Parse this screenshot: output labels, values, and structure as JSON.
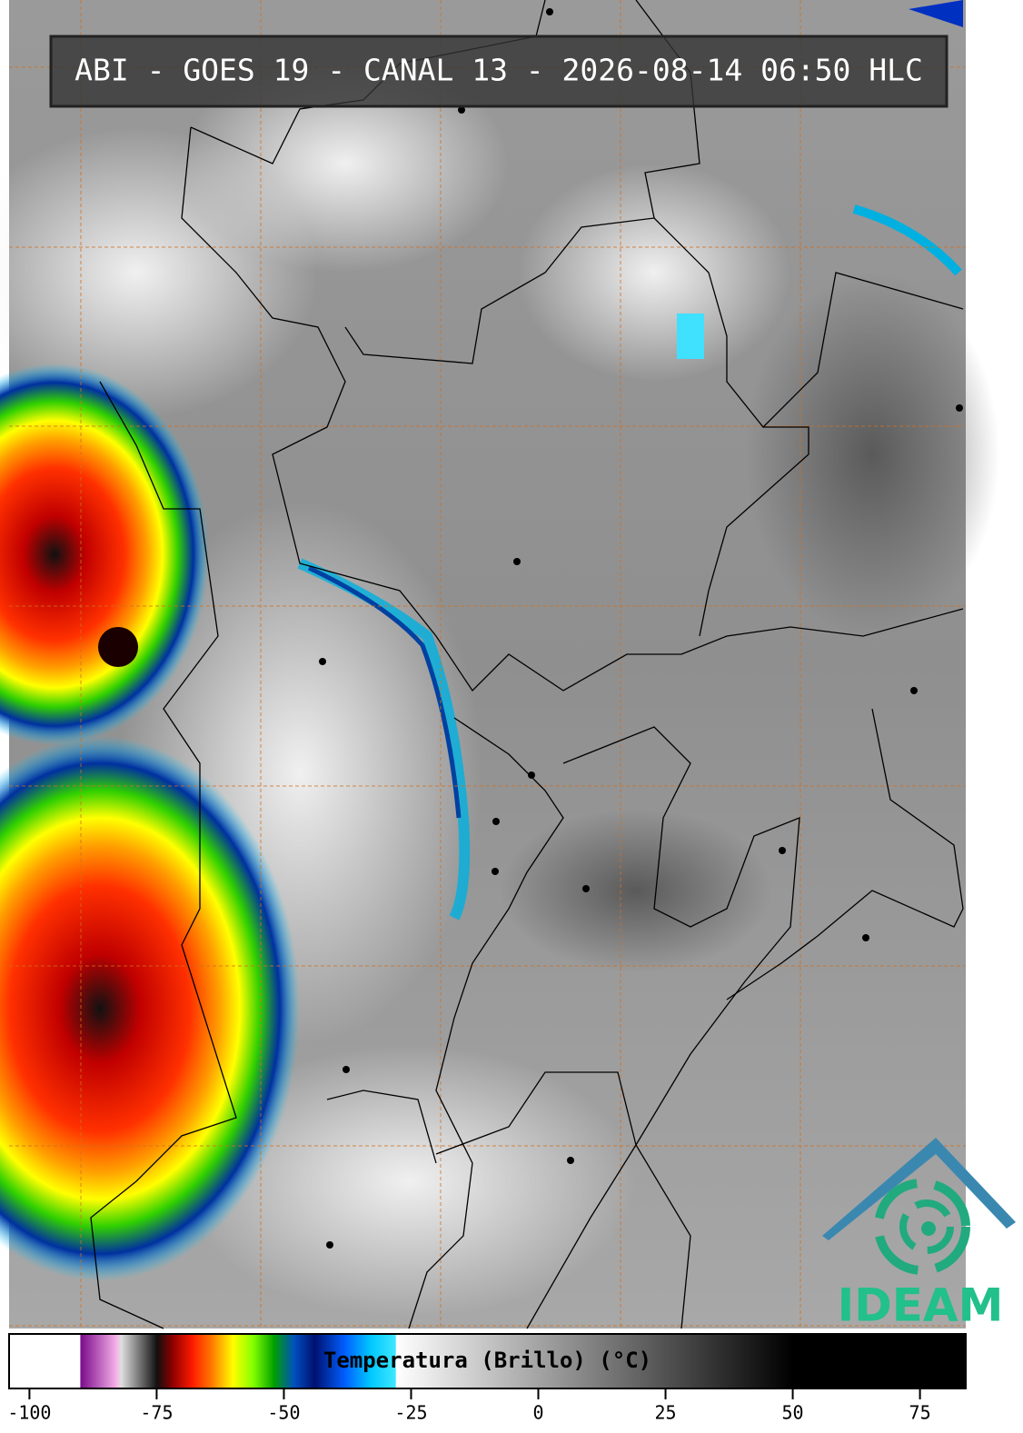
{
  "header": {
    "title": "ABI - GOES 19 - CANAL 13 - 2026-08-14 06:50 HLC"
  },
  "colorbar": {
    "label": "Temperatura (Brillo) (°C)",
    "xlim": [
      -104,
      84
    ],
    "xticks": [
      -100,
      -75,
      -50,
      -25,
      0,
      25,
      50,
      75
    ],
    "stops": [
      {
        "value": -104,
        "color": "#ffffff"
      },
      {
        "value": -90,
        "color": "#ffffff"
      },
      {
        "value": -90,
        "color": "#7a0a8a"
      },
      {
        "value": -83,
        "color": "#f5b0e8"
      },
      {
        "value": -82,
        "color": "#e0e0e0"
      },
      {
        "value": -75,
        "color": "#101010"
      },
      {
        "value": -72,
        "color": "#8b0000"
      },
      {
        "value": -68,
        "color": "#ff1a00"
      },
      {
        "value": -64,
        "color": "#ff8000"
      },
      {
        "value": -60,
        "color": "#ffff00"
      },
      {
        "value": -56,
        "color": "#80ff00"
      },
      {
        "value": -52,
        "color": "#00a000"
      },
      {
        "value": -48,
        "color": "#0050c0"
      },
      {
        "value": -44,
        "color": "#001070"
      },
      {
        "value": -38,
        "color": "#0060ff"
      },
      {
        "value": -33,
        "color": "#00c8ff"
      },
      {
        "value": -28,
        "color": "#40e8ff"
      },
      {
        "value": -28,
        "color": "#ffffff"
      },
      {
        "value": 50,
        "color": "#000000"
      },
      {
        "value": 84,
        "color": "#000000"
      }
    ]
  },
  "logo": {
    "text": "IDEAM"
  }
}
